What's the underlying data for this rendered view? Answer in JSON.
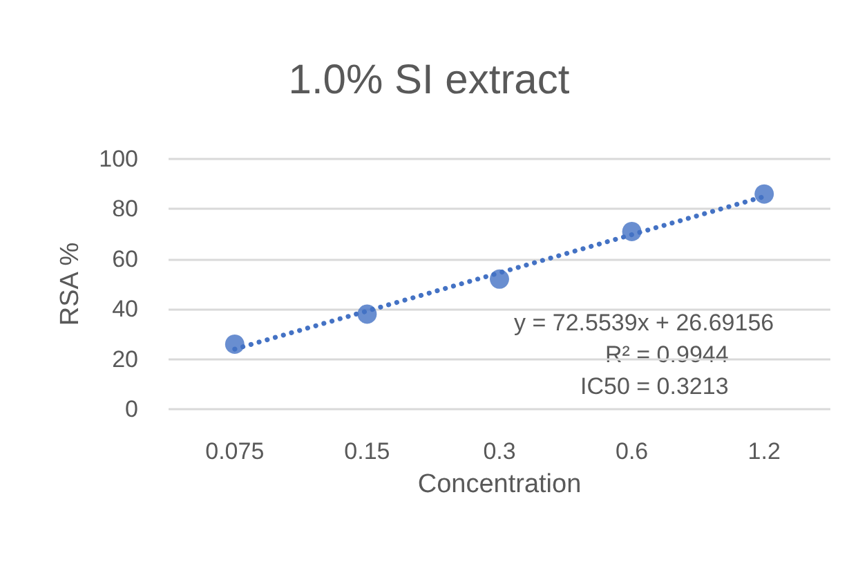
{
  "chart_data": {
    "type": "scatter",
    "title": "1.0% SI extract",
    "xlabel": "Concentration",
    "ylabel": "RSA %",
    "categories": [
      "0.075",
      "0.15",
      "0.3",
      "0.6",
      "1.2"
    ],
    "series": [
      {
        "color": "#4472c4",
        "marker": "circle",
        "values": [
          26,
          38,
          52,
          71,
          86
        ]
      },
      {
        "type": "line",
        "color": "#4472c4",
        "marker": "none",
        "line_style": "dotted",
        "x": [
          "0.075",
          "1.2"
        ],
        "values": [
          24,
          85
        ]
      }
    ],
    "annotations": [
      "y = 72.5539x + 26.69156",
      "R² = 0.9944",
      "IC50 = 0.3213"
    ],
    "ylim": [
      0,
      100
    ],
    "yticks": [
      0,
      20,
      40,
      60,
      80,
      100
    ],
    "grid": "y"
  }
}
